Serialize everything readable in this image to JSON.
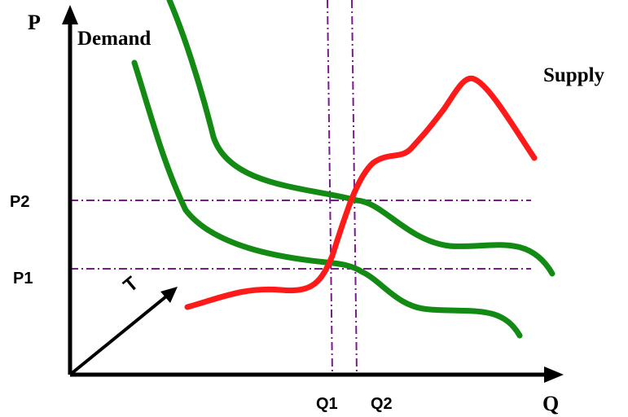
{
  "labels": {
    "p_axis": "P",
    "q_axis": "Q",
    "demand": "Demand",
    "supply": "Supply",
    "p1": "P1",
    "p2": "P2",
    "q1": "Q1",
    "q2": "Q2",
    "t": "T"
  },
  "colors": {
    "axis": "#000000",
    "demand_curve": "#138a13",
    "supply_curve": "#ff1a1a",
    "guide_lines": "#7a1a8c"
  }
}
